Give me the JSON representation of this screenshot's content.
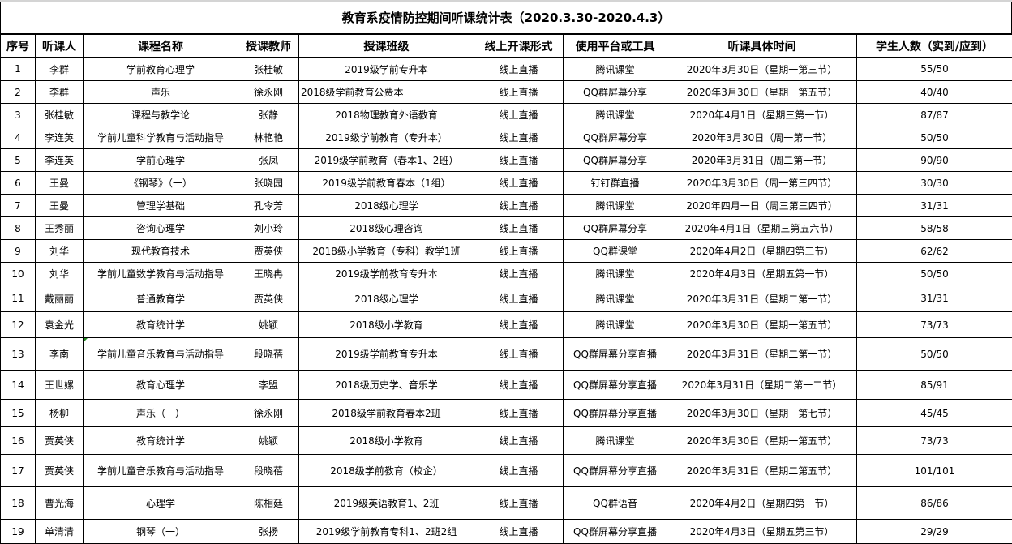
{
  "title": "教育系疫情防控期间听课统计表（2020.3.30-2020.4.3）",
  "columns": [
    "序号",
    "听课人",
    "课程名称",
    "授课教师",
    "授课班级",
    "线上开课形式",
    "使用平台或工具",
    "听课具体时间",
    "学生人数（实到/应到）"
  ],
  "rows": [
    [
      "1",
      "李群",
      "学前教育心理学",
      "张桂敏",
      "2019级学前专升本",
      "线上直播",
      "腾讯课堂",
      "2020年3月30日（星期一第三节）",
      "55/50"
    ],
    [
      "2",
      "李群",
      "声乐",
      "徐永刚",
      "2018级学前教育公费本",
      "线上直播",
      "QQ群屏幕分享",
      "2020年3月30日（星期一第五节）",
      "40/40"
    ],
    [
      "3",
      "张桂敏",
      "课程与教学论",
      "张静",
      "2018物理教育外语教育",
      "线上直播",
      "腾讯课堂",
      "2020年4月1日（星期三第一节）",
      "87/87"
    ],
    [
      "4",
      "李连英",
      "学前儿童科学教育与活动指导",
      "林艳艳",
      "2019级学前教育（专升本）",
      "线上直播",
      "QQ群屏幕分享",
      "2020年3月30日（周一第一节）",
      "50/50"
    ],
    [
      "5",
      "李连英",
      "学前心理学",
      "张凤",
      "2019级学前教育（春本1、2班）",
      "线上直播",
      "QQ群屏幕分享",
      "2020年3月31日（周二第一节）",
      "90/90"
    ],
    [
      "6",
      "王曼",
      "《钢琴》（一）",
      "张晓园",
      "2019级学前教育春本（1组）",
      "线上直播",
      "钉钉群直播",
      "2020年3月30日（周一第三四节）",
      "30/30"
    ],
    [
      "7",
      "王曼",
      "管理学基础",
      "孔令芳",
      "2018级心理学",
      "线上直播",
      "腾讯课堂",
      "2020年四月一日（周三第三四节）",
      "31/31"
    ],
    [
      "8",
      "王秀丽",
      "咨询心理学",
      "刘小玲",
      "2018级心理咨询",
      "线上直播",
      "QQ群屏幕分享",
      "2020年4月1日（星期三第五六节）",
      "58/58"
    ],
    [
      "9",
      "刘华",
      "现代教育技术",
      "贾英侠",
      "2018级小学教育（专科）教学1班",
      "线上直播",
      "QQ群课堂",
      "2020年4月2日（星期四第三节）",
      "62/62"
    ],
    [
      "10",
      "刘华",
      "学前儿童数学教育与活动指导",
      "王晓冉",
      "2019级学前教育专升本",
      "线上直播",
      "腾讯课堂",
      "2020年4月3日（星期五第一节）",
      "50/50"
    ],
    [
      "11",
      "戴丽丽",
      "普通教育学",
      "贾英侠",
      "2018级心理学",
      "线上直播",
      "腾讯课堂",
      "2020年3月31日（星期二第一节）",
      "31/31"
    ],
    [
      "12",
      "袁金光",
      "教育统计学",
      "姚颖",
      "2018级小学教育",
      "线上直播",
      "腾讯课堂",
      "2020年3月30日（星期一第五节）",
      "73/73"
    ],
    [
      "13",
      "李南",
      "学前儿童音乐教育与活动指导",
      "段晓蓓",
      "2019级学前教育专升本",
      "线上直播",
      "QQ群屏幕分享直播",
      "2020年3月31日（星期二第一节）",
      "50/50"
    ],
    [
      "14",
      "王世嫘",
      "教育心理学",
      "李盟",
      "2018级历史学、音乐学",
      "线上直播",
      "QQ群屏幕分享直播",
      "2020年3月31日（星期二第一二节）",
      "85/91"
    ],
    [
      "15",
      "杨柳",
      "声乐（一）",
      "徐永刚",
      "2018级学前教育春本2班",
      "线上直播",
      "QQ群屏幕分享直播",
      "2020年3月30日（星期一第七节）",
      "45/45"
    ],
    [
      "16",
      "贾英侠",
      "教育统计学",
      "姚颖",
      "2018级小学教育",
      "线上直播",
      "腾讯课堂",
      "2020年3月30日（星期一第五节）",
      "73/73"
    ],
    [
      "17",
      "贾英侠",
      "学前儿童音乐教育与活动指导",
      "段晓蓓",
      "2018级学前教育（校企）",
      "线上直播",
      "QQ群屏幕分享直播",
      "2020年3月31日（星期二第五节）",
      "101/101"
    ],
    [
      "18",
      "曹光海",
      "心理学",
      "陈相廷",
      "2019级英语教育1、2班",
      "线上直播",
      "QQ群语音",
      "2020年4月2日（星期四第一节）",
      "86/86"
    ],
    [
      "19",
      "单清清",
      "钢琴（一）",
      "张扬",
      "2019级学前教育专科1、2班2组",
      "线上直播",
      "QQ群屏幕分享直播",
      "2020年4月3日（星期五第三节）",
      "29/29"
    ]
  ]
}
